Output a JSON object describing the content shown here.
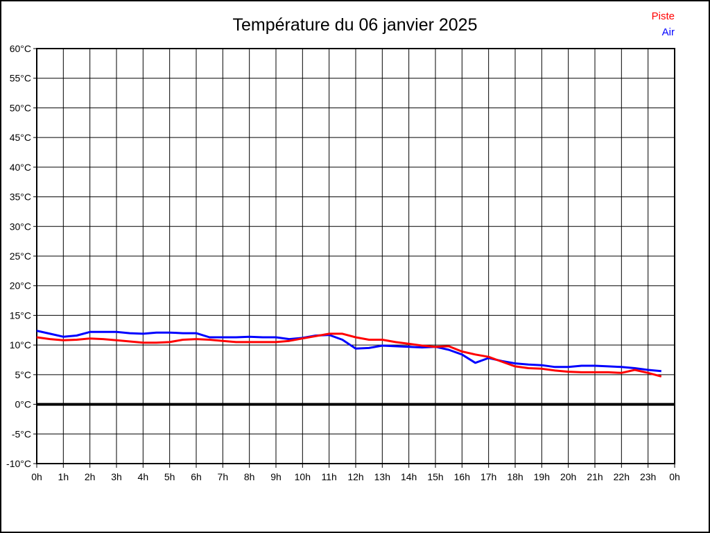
{
  "title": "Température du 06 janvier 2025",
  "legend": {
    "items": [
      {
        "label": "Piste",
        "color": "#ff0000"
      },
      {
        "label": "Air",
        "color": "#0000ff"
      }
    ]
  },
  "colors": {
    "grid": "#000000",
    "axis": "#000000",
    "zero_line": "#000000",
    "background": "#ffffff",
    "title_text": "#000000"
  },
  "chart_data": {
    "type": "line",
    "title": "Température du 06 janvier 2025",
    "xlabel": "",
    "ylabel": "",
    "x_range": [
      0,
      24
    ],
    "x_step_hours": 0.5,
    "x_tick_labels": [
      "0h",
      "1h",
      "2h",
      "3h",
      "4h",
      "5h",
      "6h",
      "7h",
      "8h",
      "9h",
      "10h",
      "11h",
      "12h",
      "13h",
      "14h",
      "15h",
      "16h",
      "17h",
      "18h",
      "19h",
      "20h",
      "21h",
      "22h",
      "23h",
      "0h"
    ],
    "ylim": [
      -10,
      60
    ],
    "y_tick_step": 5,
    "y_tick_labels": [
      "60°C",
      "55°C",
      "50°C",
      "45°C",
      "40°C",
      "35°C",
      "30°C",
      "25°C",
      "20°C",
      "15°C",
      "10°C",
      "5°C",
      "0°C",
      "-5°C",
      "-10°C"
    ],
    "grid": true,
    "zero_line_bold": true,
    "legend_position": "top-right",
    "series": [
      {
        "name": "Air",
        "color": "#0000ff",
        "values": [
          12.4,
          11.9,
          11.4,
          11.6,
          12.2,
          12.2,
          12.2,
          12.0,
          11.9,
          12.1,
          12.1,
          12.0,
          12.0,
          11.3,
          11.3,
          11.3,
          11.4,
          11.3,
          11.3,
          11.0,
          11.2,
          11.6,
          11.7,
          10.9,
          9.4,
          9.5,
          9.9,
          9.8,
          9.7,
          9.6,
          9.7,
          9.2,
          8.4,
          7.0,
          7.8,
          7.3,
          6.9,
          6.7,
          6.6,
          6.3,
          6.3,
          6.5,
          6.5,
          6.4,
          6.3,
          6.1,
          5.8,
          5.6
        ]
      },
      {
        "name": "Piste",
        "color": "#ff0000",
        "values": [
          11.3,
          11.0,
          10.8,
          10.9,
          11.1,
          11.0,
          10.8,
          10.6,
          10.4,
          10.4,
          10.5,
          10.9,
          11.0,
          10.9,
          10.7,
          10.5,
          10.5,
          10.5,
          10.5,
          10.7,
          11.1,
          11.5,
          11.9,
          11.9,
          11.3,
          10.9,
          10.9,
          10.5,
          10.2,
          9.9,
          9.7,
          9.8,
          8.9,
          8.4,
          8.0,
          7.2,
          6.4,
          6.1,
          6.0,
          5.7,
          5.5,
          5.4,
          5.4,
          5.4,
          5.3,
          5.8,
          5.3,
          4.7
        ]
      }
    ]
  }
}
